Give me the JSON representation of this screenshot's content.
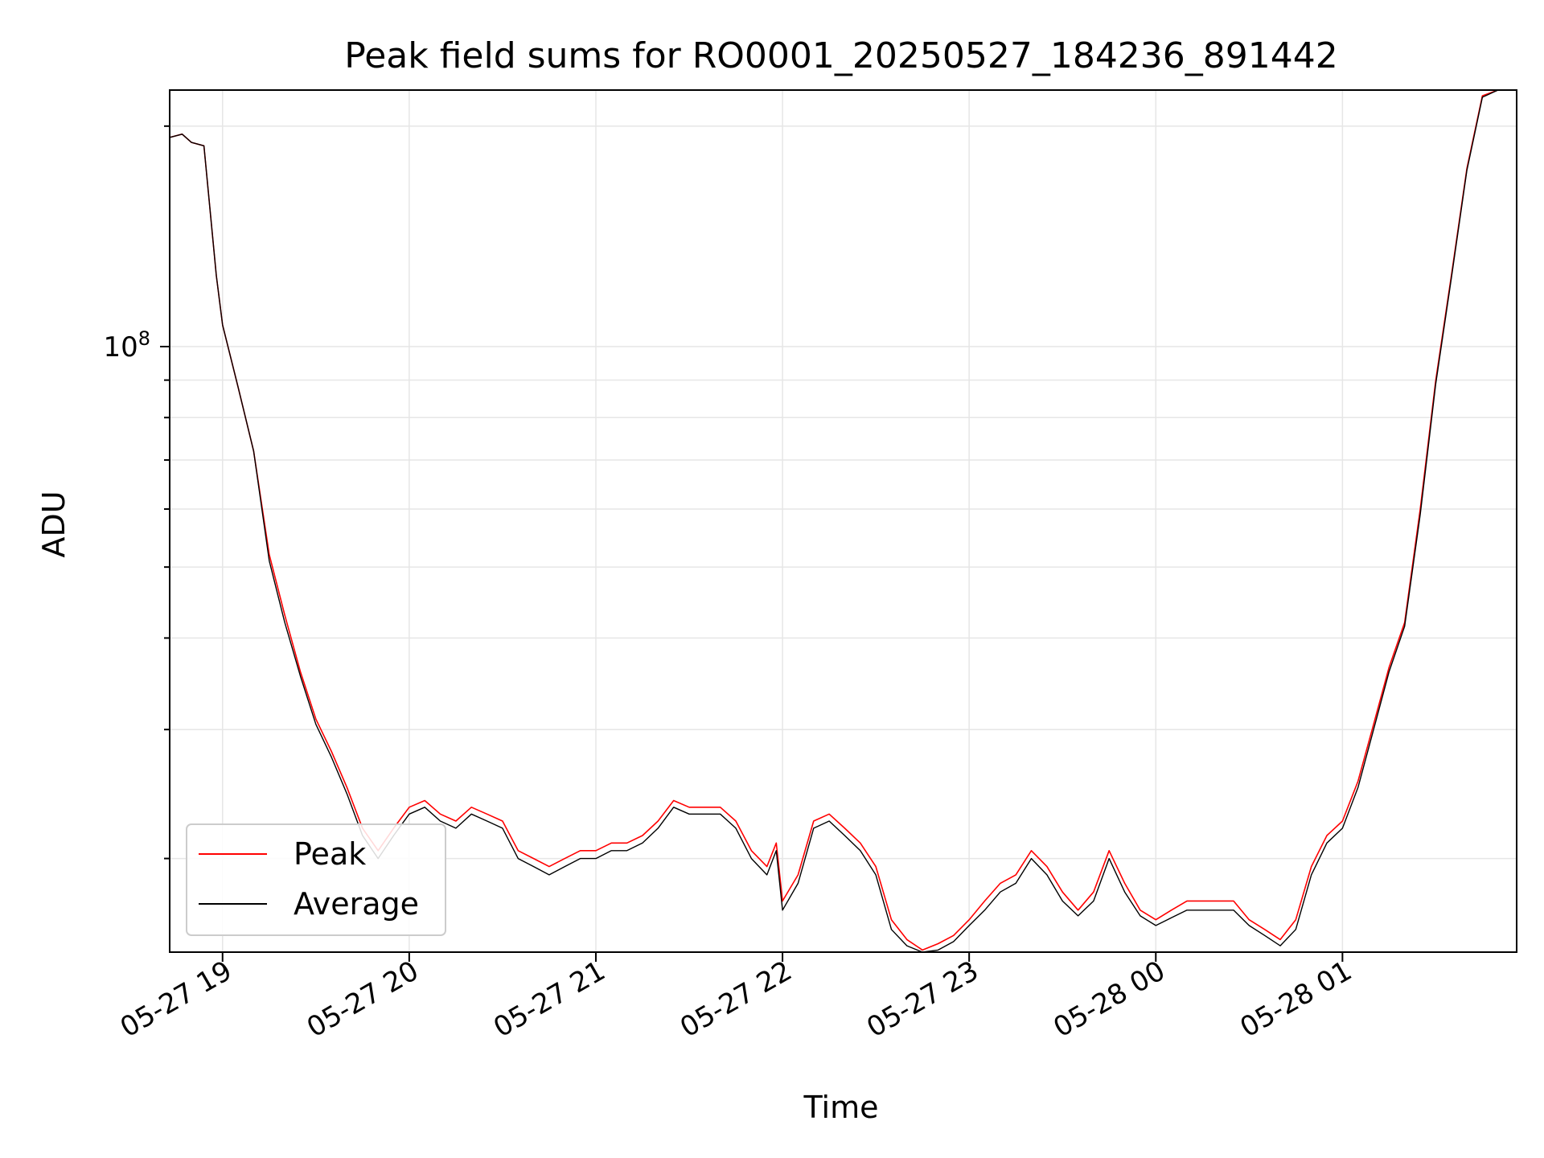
{
  "chart_data": {
    "type": "line",
    "title": "Peak field sums for RO0001_20250527_184236_891442",
    "xlabel": "Time",
    "ylabel": "ADU",
    "yscale": "log",
    "grid": true,
    "legend_position": "lower-left",
    "x_tick_labels": [
      "05-27 19",
      "05-27 20",
      "05-27 21",
      "05-27 22",
      "05-27 23",
      "05-28 00",
      "05-28 01"
    ],
    "y_tick_labels": [
      {
        "base": "10",
        "exp": "8"
      }
    ],
    "xlim": [
      "05-27 18:43",
      "05-28 01:56"
    ],
    "ylim": [
      14900000,
      224000000
    ],
    "series": [
      {
        "name": "Peak",
        "color": "#ff0000",
        "points": [
          [
            "05-27 18:43",
            193000000
          ],
          [
            "05-27 18:47",
            195000000
          ],
          [
            "05-27 18:50",
            190000000
          ],
          [
            "05-27 18:54",
            188000000
          ],
          [
            "05-27 18:58",
            125000000
          ],
          [
            "05-27 19:00",
            107000000
          ],
          [
            "05-27 19:05",
            88000000
          ],
          [
            "05-27 19:10",
            72000000
          ],
          [
            "05-27 19:15",
            52000000
          ],
          [
            "05-27 19:20",
            43000000
          ],
          [
            "05-27 19:25",
            36000000
          ],
          [
            "05-27 19:30",
            31000000
          ],
          [
            "05-27 19:35",
            28000000
          ],
          [
            "05-27 19:40",
            25000000
          ],
          [
            "05-27 19:45",
            22000000
          ],
          [
            "05-27 19:50",
            20500000
          ],
          [
            "05-27 19:55",
            22000000
          ],
          [
            "05-27 20:00",
            23500000
          ],
          [
            "05-27 20:05",
            24000000
          ],
          [
            "05-27 20:10",
            23000000
          ],
          [
            "05-27 20:15",
            22500000
          ],
          [
            "05-27 20:20",
            23500000
          ],
          [
            "05-27 20:25",
            23000000
          ],
          [
            "05-27 20:30",
            22500000
          ],
          [
            "05-27 20:35",
            20500000
          ],
          [
            "05-27 20:40",
            20000000
          ],
          [
            "05-27 20:45",
            19500000
          ],
          [
            "05-27 20:50",
            20000000
          ],
          [
            "05-27 20:55",
            20500000
          ],
          [
            "05-27 21:00",
            20500000
          ],
          [
            "05-27 21:05",
            21000000
          ],
          [
            "05-27 21:10",
            21000000
          ],
          [
            "05-27 21:15",
            21500000
          ],
          [
            "05-27 21:20",
            22500000
          ],
          [
            "05-27 21:25",
            24000000
          ],
          [
            "05-27 21:30",
            23500000
          ],
          [
            "05-27 21:35",
            23500000
          ],
          [
            "05-27 21:40",
            23500000
          ],
          [
            "05-27 21:45",
            22500000
          ],
          [
            "05-27 21:50",
            20500000
          ],
          [
            "05-27 21:55",
            19500000
          ],
          [
            "05-27 21:58",
            21000000
          ],
          [
            "05-27 22:00",
            17500000
          ],
          [
            "05-27 22:05",
            19000000
          ],
          [
            "05-27 22:10",
            22500000
          ],
          [
            "05-27 22:15",
            23000000
          ],
          [
            "05-27 22:20",
            22000000
          ],
          [
            "05-27 22:25",
            21000000
          ],
          [
            "05-27 22:30",
            19500000
          ],
          [
            "05-27 22:35",
            16500000
          ],
          [
            "05-27 22:40",
            15500000
          ],
          [
            "05-27 22:45",
            15000000
          ],
          [
            "05-27 22:50",
            15300000
          ],
          [
            "05-27 22:55",
            15700000
          ],
          [
            "05-27 23:00",
            16500000
          ],
          [
            "05-27 23:05",
            17500000
          ],
          [
            "05-27 23:10",
            18500000
          ],
          [
            "05-27 23:15",
            19000000
          ],
          [
            "05-27 23:20",
            20500000
          ],
          [
            "05-27 23:25",
            19500000
          ],
          [
            "05-27 23:30",
            18000000
          ],
          [
            "05-27 23:35",
            17000000
          ],
          [
            "05-27 23:40",
            18000000
          ],
          [
            "05-27 23:45",
            20500000
          ],
          [
            "05-27 23:50",
            18500000
          ],
          [
            "05-27 23:55",
            17000000
          ],
          [
            "05-28 00:00",
            16500000
          ],
          [
            "05-28 00:05",
            17000000
          ],
          [
            "05-28 00:10",
            17500000
          ],
          [
            "05-28 00:15",
            17500000
          ],
          [
            "05-28 00:20",
            17500000
          ],
          [
            "05-28 00:25",
            17500000
          ],
          [
            "05-28 00:30",
            16500000
          ],
          [
            "05-28 00:35",
            16000000
          ],
          [
            "05-28 00:40",
            15500000
          ],
          [
            "05-28 00:45",
            16500000
          ],
          [
            "05-28 00:50",
            19500000
          ],
          [
            "05-28 00:55",
            21500000
          ],
          [
            "05-28 01:00",
            22500000
          ],
          [
            "05-28 01:05",
            25500000
          ],
          [
            "05-28 01:10",
            30500000
          ],
          [
            "05-28 01:15",
            36500000
          ],
          [
            "05-28 01:20",
            42000000
          ],
          [
            "05-28 01:25",
            60000000
          ],
          [
            "05-28 01:30",
            90000000
          ],
          [
            "05-28 01:35",
            125000000
          ],
          [
            "05-28 01:40",
            175000000
          ],
          [
            "05-28 01:45",
            220000000
          ],
          [
            "05-28 01:50",
            224000000
          ],
          [
            "05-28 01:56",
            224000000
          ]
        ]
      },
      {
        "name": "Average",
        "color": "#000000",
        "points": [
          [
            "05-27 18:43",
            193000000
          ],
          [
            "05-27 18:47",
            195000000
          ],
          [
            "05-27 18:50",
            190000000
          ],
          [
            "05-27 18:54",
            188000000
          ],
          [
            "05-27 18:58",
            125000000
          ],
          [
            "05-27 19:00",
            107000000
          ],
          [
            "05-27 19:05",
            88000000
          ],
          [
            "05-27 19:10",
            72000000
          ],
          [
            "05-27 19:15",
            51000000
          ],
          [
            "05-27 19:20",
            42000000
          ],
          [
            "05-27 19:25",
            35500000
          ],
          [
            "05-27 19:30",
            30500000
          ],
          [
            "05-27 19:35",
            27500000
          ],
          [
            "05-27 19:40",
            24500000
          ],
          [
            "05-27 19:45",
            21500000
          ],
          [
            "05-27 19:50",
            20000000
          ],
          [
            "05-27 19:55",
            21500000
          ],
          [
            "05-27 20:00",
            23000000
          ],
          [
            "05-27 20:05",
            23500000
          ],
          [
            "05-27 20:10",
            22500000
          ],
          [
            "05-27 20:15",
            22000000
          ],
          [
            "05-27 20:20",
            23000000
          ],
          [
            "05-27 20:25",
            22500000
          ],
          [
            "05-27 20:30",
            22000000
          ],
          [
            "05-27 20:35",
            20000000
          ],
          [
            "05-27 20:40",
            19500000
          ],
          [
            "05-27 20:45",
            19000000
          ],
          [
            "05-27 20:50",
            19500000
          ],
          [
            "05-27 20:55",
            20000000
          ],
          [
            "05-27 21:00",
            20000000
          ],
          [
            "05-27 21:05",
            20500000
          ],
          [
            "05-27 21:10",
            20500000
          ],
          [
            "05-27 21:15",
            21000000
          ],
          [
            "05-27 21:20",
            22000000
          ],
          [
            "05-27 21:25",
            23500000
          ],
          [
            "05-27 21:30",
            23000000
          ],
          [
            "05-27 21:35",
            23000000
          ],
          [
            "05-27 21:40",
            23000000
          ],
          [
            "05-27 21:45",
            22000000
          ],
          [
            "05-27 21:50",
            20000000
          ],
          [
            "05-27 21:55",
            19000000
          ],
          [
            "05-27 21:58",
            20500000
          ],
          [
            "05-27 22:00",
            17000000
          ],
          [
            "05-27 22:05",
            18500000
          ],
          [
            "05-27 22:10",
            22000000
          ],
          [
            "05-27 22:15",
            22500000
          ],
          [
            "05-27 22:20",
            21500000
          ],
          [
            "05-27 22:25",
            20500000
          ],
          [
            "05-27 22:30",
            19000000
          ],
          [
            "05-27 22:35",
            16000000
          ],
          [
            "05-27 22:40",
            15200000
          ],
          [
            "05-27 22:45",
            14900000
          ],
          [
            "05-27 22:50",
            15000000
          ],
          [
            "05-27 22:55",
            15400000
          ],
          [
            "05-27 23:00",
            16200000
          ],
          [
            "05-27 23:05",
            17000000
          ],
          [
            "05-27 23:10",
            18000000
          ],
          [
            "05-27 23:15",
            18500000
          ],
          [
            "05-27 23:20",
            20000000
          ],
          [
            "05-27 23:25",
            19000000
          ],
          [
            "05-27 23:30",
            17500000
          ],
          [
            "05-27 23:35",
            16700000
          ],
          [
            "05-27 23:40",
            17500000
          ],
          [
            "05-27 23:45",
            20000000
          ],
          [
            "05-27 23:50",
            18000000
          ],
          [
            "05-27 23:55",
            16700000
          ],
          [
            "05-28 00:00",
            16200000
          ],
          [
            "05-28 00:05",
            16600000
          ],
          [
            "05-28 00:10",
            17000000
          ],
          [
            "05-28 00:15",
            17000000
          ],
          [
            "05-28 00:20",
            17000000
          ],
          [
            "05-28 00:25",
            17000000
          ],
          [
            "05-28 00:30",
            16200000
          ],
          [
            "05-28 00:35",
            15700000
          ],
          [
            "05-28 00:40",
            15200000
          ],
          [
            "05-28 00:45",
            16000000
          ],
          [
            "05-28 00:50",
            19000000
          ],
          [
            "05-28 00:55",
            21000000
          ],
          [
            "05-28 01:00",
            22000000
          ],
          [
            "05-28 01:05",
            25000000
          ],
          [
            "05-28 01:10",
            30000000
          ],
          [
            "05-28 01:15",
            36000000
          ],
          [
            "05-28 01:20",
            41500000
          ],
          [
            "05-28 01:25",
            59000000
          ],
          [
            "05-28 01:30",
            89000000
          ],
          [
            "05-28 01:35",
            124000000
          ],
          [
            "05-28 01:40",
            174000000
          ],
          [
            "05-28 01:45",
            219000000
          ],
          [
            "05-28 01:50",
            224000000
          ],
          [
            "05-28 01:56",
            224000000
          ]
        ]
      }
    ]
  }
}
